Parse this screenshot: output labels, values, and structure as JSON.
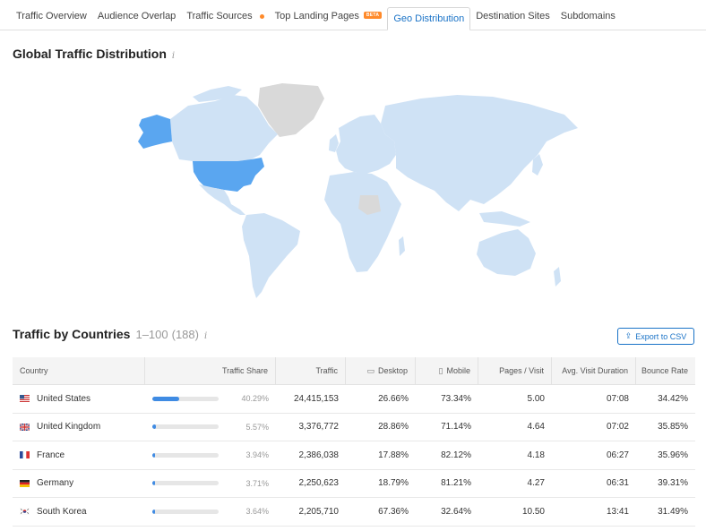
{
  "tabs": [
    {
      "label": "Traffic Overview"
    },
    {
      "label": "Audience Overlap"
    },
    {
      "label": "Traffic Sources",
      "dot": true
    },
    {
      "label": "Top Landing Pages",
      "badge": "BETA"
    },
    {
      "label": "Geo Distribution",
      "active": true
    },
    {
      "label": "Destination Sites"
    },
    {
      "label": "Subdomains"
    }
  ],
  "map_section": {
    "title": "Global Traffic Distribution",
    "info": "i"
  },
  "countries_section": {
    "title": "Traffic by Countries",
    "range": "1–100",
    "total": "(188)",
    "info": "i",
    "export_label": "Export to CSV"
  },
  "table": {
    "headers": {
      "country": "Country",
      "share": "Traffic Share",
      "traffic": "Traffic",
      "desktop": "Desktop",
      "mobile": "Mobile",
      "pages": "Pages / Visit",
      "duration": "Avg. Visit Duration",
      "bounce": "Bounce Rate"
    },
    "rows": [
      {
        "flag": "us",
        "country": "United States",
        "share": "40.29%",
        "share_value": 40.29,
        "traffic": "24,415,153",
        "desktop": "26.66%",
        "mobile": "73.34%",
        "pages": "5.00",
        "duration": "07:08",
        "bounce": "34.42%"
      },
      {
        "flag": "uk",
        "country": "United Kingdom",
        "share": "5.57%",
        "share_value": 5.57,
        "traffic": "3,376,772",
        "desktop": "28.86%",
        "mobile": "71.14%",
        "pages": "4.64",
        "duration": "07:02",
        "bounce": "35.85%"
      },
      {
        "flag": "fr",
        "country": "France",
        "share": "3.94%",
        "share_value": 3.94,
        "traffic": "2,386,038",
        "desktop": "17.88%",
        "mobile": "82.12%",
        "pages": "4.18",
        "duration": "06:27",
        "bounce": "35.96%"
      },
      {
        "flag": "de",
        "country": "Germany",
        "share": "3.71%",
        "share_value": 3.71,
        "traffic": "2,250,623",
        "desktop": "18.79%",
        "mobile": "81.21%",
        "pages": "4.27",
        "duration": "06:31",
        "bounce": "39.31%"
      },
      {
        "flag": "kr",
        "country": "South Korea",
        "share": "3.64%",
        "share_value": 3.64,
        "traffic": "2,205,710",
        "desktop": "67.36%",
        "mobile": "32.64%",
        "pages": "10.50",
        "duration": "13:41",
        "bounce": "31.49%"
      }
    ]
  },
  "colors": {
    "accent": "#1a73c7",
    "map_highlight": "#5aa6f0",
    "map_default": "#cfe2f5",
    "map_nodata": "#d9d9d9",
    "bar_fill": "#3f8be3",
    "badge": "#ff8a2a"
  }
}
